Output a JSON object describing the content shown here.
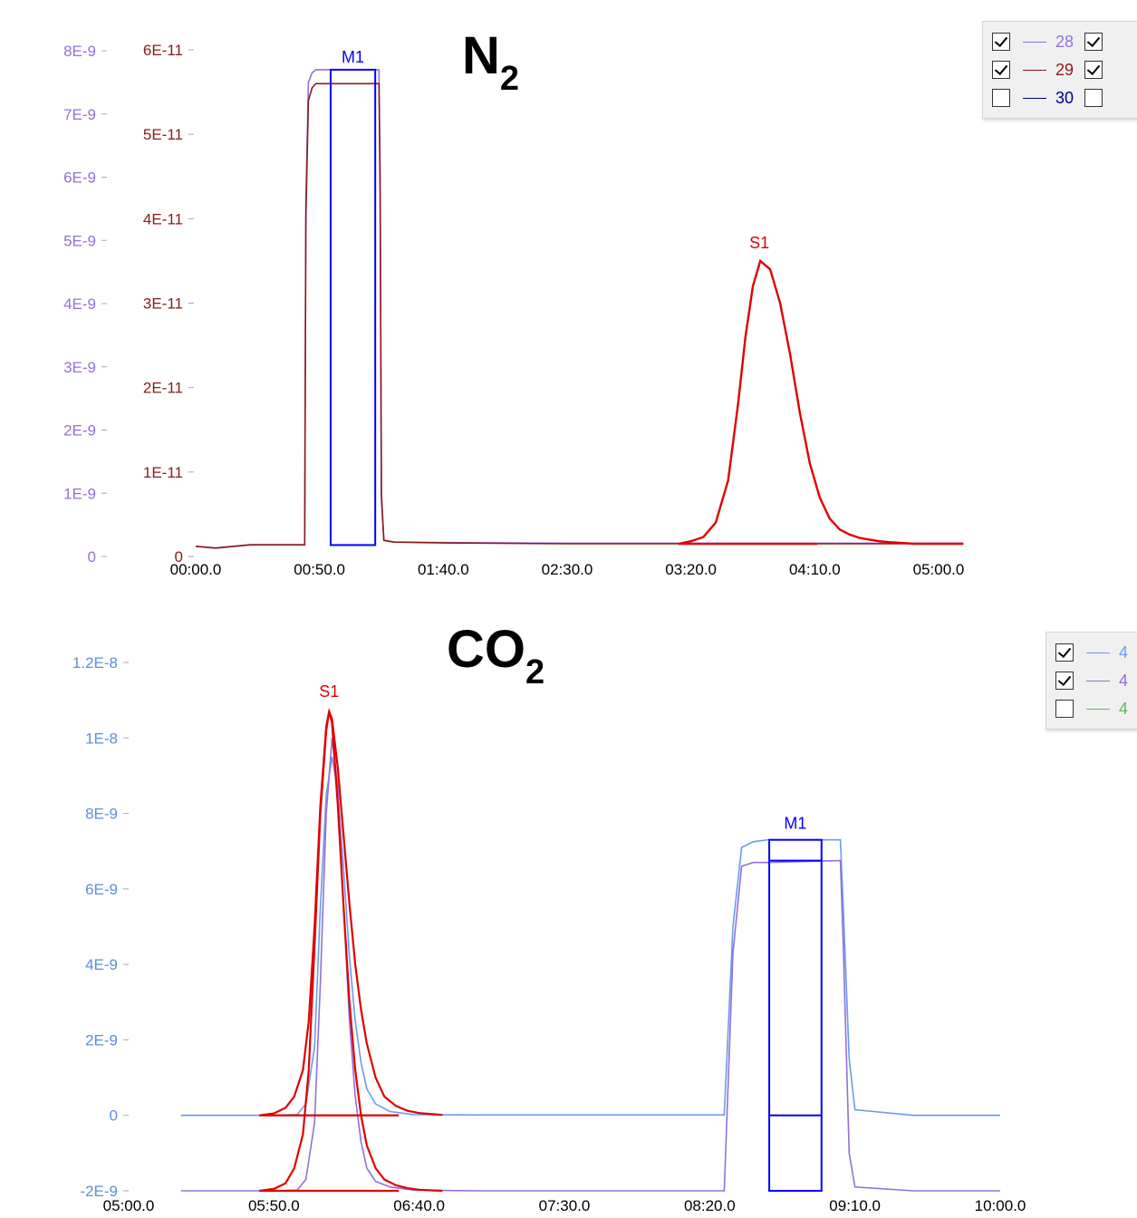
{
  "chart_data": [
    {
      "type": "line",
      "title": "N",
      "title_subscript": "2",
      "x_tick_labels": [
        "00:00.0",
        "00:50.0",
        "01:40.0",
        "02:30.0",
        "03:20.0",
        "04:10.0",
        "05:00.0"
      ],
      "xlim_seconds": [
        0,
        300
      ],
      "y_axes": [
        {
          "name": "left-outer",
          "color": "#9370db",
          "tick_labels": [
            "0",
            "1E-9",
            "2E-9",
            "3E-9",
            "4E-9",
            "5E-9",
            "6E-9",
            "7E-9",
            "8E-9"
          ],
          "ylim": [
            0,
            8.8e-09
          ]
        },
        {
          "name": "left-inner",
          "color": "#8b1a1a",
          "tick_labels": [
            "0",
            "1E-11",
            "2E-11",
            "3E-11",
            "4E-11",
            "5E-11",
            "6E-11"
          ],
          "ylim": [
            0,
            6.6e-11
          ]
        }
      ],
      "series": [
        {
          "name": "28",
          "color": "#9370db",
          "axis": 0,
          "visible": true,
          "x": [
            0,
            8,
            22,
            44,
            44.5,
            45.5,
            47,
            48.5,
            57,
            60,
            68,
            74,
            74.5,
            75,
            76,
            80,
            100,
            150,
            200,
            255,
            258,
            261,
            264,
            268,
            272,
            276,
            280,
            284,
            288,
            292,
            296,
            300,
            310
          ],
          "y": [
            1.6e-10,
            1.3e-10,
            1.8e-10,
            1.8e-10,
            5.6e-09,
            7.5e-09,
            7.65e-09,
            7.7e-09,
            7.7e-09,
            7.7e-09,
            7.7e-09,
            7.7e-09,
            6e-09,
            1e-09,
            2.6e-10,
            2.3e-10,
            2.2e-10,
            2.1e-10,
            2.1e-10,
            2.1e-10,
            2.1e-10,
            2.1e-10,
            2.1e-10,
            2.1e-10,
            2.1e-10,
            2.1e-10,
            2.1e-10,
            2.1e-10,
            2.1e-10,
            2.1e-10,
            2.1e-10,
            2.1e-10,
            2.1e-10
          ]
        },
        {
          "name": "29",
          "color": "#8b1a1a",
          "axis": 1,
          "visible": true,
          "x": [
            0,
            8,
            22,
            44,
            44.5,
            45.5,
            47,
            48.5,
            57,
            60,
            68,
            74,
            74.5,
            75,
            76,
            80,
            100,
            150,
            200,
            255,
            258,
            261,
            264,
            268,
            272,
            276,
            280,
            284,
            288,
            292,
            296,
            300,
            310
          ],
          "y": [
            1.2e-12,
            1e-12,
            1.4e-12,
            1.4e-12,
            4e-11,
            5.4e-11,
            5.55e-11,
            5.6e-11,
            5.6e-11,
            5.6e-11,
            5.6e-11,
            5.6e-11,
            4.3e-11,
            7e-12,
            1.9e-12,
            1.7e-12,
            1.6e-12,
            1.5e-12,
            1.5e-12,
            1.5e-12,
            1.5e-12,
            1.5e-12,
            1.5e-12,
            1.5e-12,
            1.5e-12,
            1.5e-12,
            1.5e-12,
            1.5e-12,
            1.5e-12,
            1.5e-12,
            1.5e-12,
            1.5e-12,
            1.5e-12
          ]
        },
        {
          "name": "30",
          "color": "#00008b",
          "axis": 0,
          "visible": false,
          "x": [],
          "y": []
        }
      ],
      "peak_curve": {
        "color": "#e00000",
        "x": [
          195,
          200,
          205,
          210,
          215,
          219,
          222,
          225,
          228,
          232,
          236,
          240,
          244,
          248,
          252,
          256,
          260,
          264,
          268,
          272,
          276,
          280,
          285,
          290,
          300,
          310
        ],
        "y": [
          1.5e-12,
          1.8e-12,
          2.3e-12,
          4e-12,
          9e-12,
          1.8e-11,
          2.6e-11,
          3.2e-11,
          3.5e-11,
          3.4e-11,
          3e-11,
          2.4e-11,
          1.7e-11,
          1.1e-11,
          7e-12,
          4.5e-12,
          3.2e-12,
          2.6e-12,
          2.2e-12,
          2e-12,
          1.8e-12,
          1.7e-12,
          1.6e-12,
          1.5e-12,
          1.5e-12,
          1.5e-12
        ]
      },
      "annotations": [
        {
          "label": "M1",
          "type": "box",
          "color": "#0000ff",
          "x_start": 54.5,
          "x_end": 72.5,
          "axis": 0,
          "y_bottom": 1.8e-10,
          "y_top": 7.7e-09
        },
        {
          "label": "S1",
          "type": "peak",
          "color": "#e00000",
          "x_start": 195,
          "x_end": 251,
          "axis": 1,
          "y_base": 1.5e-12
        }
      ],
      "legend": {
        "placement": "top-right",
        "entries": [
          {
            "label": "28",
            "color": "#9370db",
            "checked": true,
            "checked2": true
          },
          {
            "label": "29",
            "color": "#8b1a1a",
            "checked": true,
            "checked2": true
          },
          {
            "label": "30",
            "color": "#00008b",
            "checked": false,
            "checked2": false
          }
        ]
      }
    },
    {
      "type": "line",
      "title": "CO",
      "title_subscript": "2",
      "x_tick_labels": [
        "05:00.0",
        "05:50.0",
        "06:40.0",
        "07:30.0",
        "08:20.0",
        "09:10.0",
        "10:00.0"
      ],
      "xlim_seconds": [
        300,
        600
      ],
      "y_axes": [
        {
          "name": "left",
          "color": "#5b8fd9",
          "tick_labels": [
            "-2E-9",
            "0",
            "2E-9",
            "4E-9",
            "6E-9",
            "8E-9",
            "1E-8",
            "1.2E-8"
          ],
          "ylim": [
            -2e-09,
            1.22e-08
          ]
        }
      ],
      "series": [
        {
          "name": "",
          "color": "#6a9bef",
          "axis": 0,
          "visible": true,
          "x": [
            318,
            350,
            358,
            361,
            364,
            366,
            368,
            370,
            372,
            374,
            376,
            378,
            380,
            382,
            385,
            390,
            398,
            420,
            480,
            505,
            508,
            511,
            515,
            520,
            545,
            546,
            548,
            550,
            570,
            600
          ],
          "y": [
            0,
            0,
            2e-11,
            3e-10,
            1.8e-09,
            5.5e-09,
            8.5e-09,
            9.5e-09,
            8.6e-09,
            6.5e-09,
            4.2e-09,
            2.5e-09,
            1.4e-09,
            7e-10,
            3e-10,
            1e-10,
            2e-11,
            1e-11,
            1e-11,
            1e-11,
            5e-09,
            7.1e-09,
            7.25e-09,
            7.3e-09,
            7.3e-09,
            5.5e-09,
            1.5e-09,
            1.5e-10,
            0,
            0
          ]
        },
        {
          "name": "",
          "color": "#9370db",
          "axis": 0,
          "visible": true,
          "x": [
            318,
            350,
            358,
            361,
            364,
            366,
            368,
            370,
            372,
            374,
            376,
            378,
            380,
            382,
            385,
            390,
            398,
            420,
            480,
            505,
            508,
            511,
            515,
            520,
            545,
            546,
            548,
            550,
            570,
            600
          ],
          "y": [
            -2e-09,
            -2e-09,
            -1.98e-09,
            -1.7e-09,
            -2e-10,
            3.5e-09,
            8e-09,
            1e-08,
            8.7e-09,
            5.5e-09,
            2.5e-09,
            5e-10,
            -7e-10,
            -1.4e-09,
            -1.75e-09,
            -1.9e-09,
            -1.98e-09,
            -2e-09,
            -2e-09,
            -2e-09,
            4.3e-09,
            6.6e-09,
            6.7e-09,
            6.7e-09,
            6.75e-09,
            4.5e-09,
            -1e-09,
            -1.9e-09,
            -2e-09,
            -2e-09
          ]
        },
        {
          "name": "",
          "color": "#5cb85c",
          "axis": 0,
          "visible": false,
          "x": [],
          "y": []
        }
      ],
      "peak_curves": [
        {
          "color": "#e00000",
          "x": [
            345,
            350,
            354,
            357,
            360,
            362,
            364,
            366,
            368,
            369,
            370,
            372,
            374,
            376,
            378,
            380,
            382,
            385,
            388,
            392,
            396,
            400,
            405,
            408
          ],
          "y": [
            0,
            5e-11,
            2e-10,
            5e-10,
            1.2e-09,
            2.5e-09,
            5e-09,
            8.2e-09,
            1.03e-08,
            1.07e-08,
            1.05e-08,
            9.2e-09,
            7.4e-09,
            5.6e-09,
            4e-09,
            2.8e-09,
            1.9e-09,
            1e-09,
            5e-10,
            2.5e-10,
            1.2e-10,
            6e-11,
            3e-11,
            1e-11
          ]
        },
        {
          "color": "#e00000",
          "x": [
            345,
            350,
            354,
            357,
            360,
            362,
            364,
            366,
            368,
            369,
            370,
            372,
            374,
            376,
            378,
            380,
            382,
            385,
            388,
            392,
            396,
            400,
            405,
            408
          ],
          "y": [
            -2e-09,
            -1.95e-09,
            -1.8e-09,
            -1.4e-09,
            -5e-10,
            1.2e-09,
            4.5e-09,
            8e-09,
            1.02e-08,
            1.07e-08,
            1.04e-08,
            8.2e-09,
            5.5e-09,
            3e-09,
            1.2e-09,
            0,
            -8e-10,
            -1.4e-09,
            -1.7e-09,
            -1.85e-09,
            -1.93e-09,
            -1.97e-09,
            -1.99e-09,
            -2e-09
          ]
        }
      ],
      "annotations": [
        {
          "label": "S1",
          "type": "peak",
          "color": "#e00000",
          "x_start": 345,
          "x_end": 393,
          "axis": 0,
          "y_base": 0,
          "y_base2": -2e-09
        },
        {
          "label": "M1",
          "type": "box",
          "color": "#0000ff",
          "x_start": 520.5,
          "x_end": 538.5,
          "axis": 0,
          "y_bottom": -2e-09,
          "y_top": 7.3e-09,
          "y_mid": 0,
          "y_mid2": 6.75e-09
        }
      ],
      "legend": {
        "placement": "top-right",
        "entries": [
          {
            "label": "4",
            "color": "#6a9bef",
            "checked": true
          },
          {
            "label": "4",
            "color": "#9370db",
            "checked": true
          },
          {
            "label": "4",
            "color": "#5cb85c",
            "checked": false
          }
        ]
      }
    }
  ]
}
